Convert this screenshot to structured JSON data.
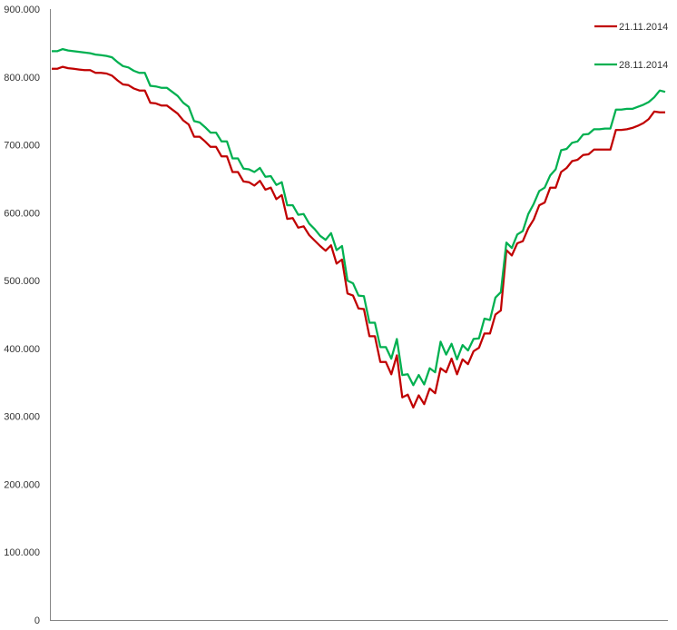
{
  "chart_data": {
    "type": "line",
    "ylim": [
      0,
      900000
    ],
    "y_ticks": [
      0,
      100000,
      200000,
      300000,
      400000,
      500000,
      600000,
      700000,
      800000,
      900000
    ],
    "y_tick_labels": [
      "0",
      "100.000",
      "200.000",
      "300.000",
      "400.000",
      "500.000",
      "600.000",
      "700.000",
      "800.000",
      "900.000"
    ],
    "grid": false,
    "legend_position": "top-right",
    "series": [
      {
        "name": "21.11.2014",
        "color": "#C00000",
        "values": [
          812000,
          812000,
          815000,
          813000,
          812000,
          811000,
          810000,
          810000,
          806000,
          806000,
          805000,
          802000,
          795000,
          789000,
          788000,
          783000,
          780000,
          780000,
          762000,
          761000,
          758000,
          758000,
          752000,
          746000,
          736000,
          730000,
          712000,
          712000,
          705000,
          697000,
          697000,
          683000,
          683000,
          660000,
          660000,
          646000,
          645000,
          640000,
          647000,
          634000,
          637000,
          620000,
          626000,
          591000,
          592000,
          578000,
          580000,
          567000,
          559000,
          551000,
          544000,
          552000,
          525000,
          531000,
          481000,
          478000,
          459000,
          458000,
          418000,
          418000,
          380000,
          380000,
          362000,
          390000,
          328000,
          332000,
          313000,
          331000,
          318000,
          341000,
          334000,
          371000,
          365000,
          385000,
          362000,
          384000,
          377000,
          396000,
          401000,
          422000,
          422000,
          450000,
          456000,
          545000,
          537000,
          555000,
          558000,
          577000,
          590000,
          611000,
          615000,
          637000,
          637000,
          660000,
          666000,
          676000,
          678000,
          685000,
          686000,
          693000,
          693000,
          693000,
          693000,
          722000,
          722000,
          723000,
          725000,
          728000,
          732000,
          738000,
          749000,
          748000,
          748000
        ]
      },
      {
        "name": "28.11.2014",
        "color": "#00B050",
        "values": [
          838000,
          838000,
          841000,
          839000,
          838000,
          837000,
          836000,
          835000,
          833000,
          832000,
          831000,
          829000,
          822000,
          816000,
          814000,
          809000,
          806000,
          806000,
          787000,
          786000,
          784000,
          784000,
          778000,
          772000,
          762000,
          756000,
          735000,
          733000,
          726000,
          718000,
          718000,
          705000,
          705000,
          680000,
          680000,
          665000,
          664000,
          660000,
          666000,
          653000,
          654000,
          641000,
          645000,
          611000,
          611000,
          597000,
          598000,
          584000,
          576000,
          566000,
          560000,
          570000,
          545000,
          551000,
          500000,
          496000,
          478000,
          477000,
          438000,
          438000,
          402000,
          402000,
          385000,
          414000,
          361000,
          362000,
          346000,
          361000,
          347000,
          371000,
          365000,
          410000,
          391000,
          407000,
          384000,
          405000,
          397000,
          414000,
          415000,
          444000,
          442000,
          475000,
          483000,
          556000,
          548000,
          568000,
          573000,
          598000,
          613000,
          632000,
          637000,
          655000,
          664000,
          692000,
          694000,
          703000,
          705000,
          715000,
          716000,
          723000,
          723000,
          724000,
          724000,
          752000,
          752000,
          753000,
          753000,
          756000,
          759000,
          763000,
          770000,
          780000,
          778000
        ]
      }
    ]
  }
}
